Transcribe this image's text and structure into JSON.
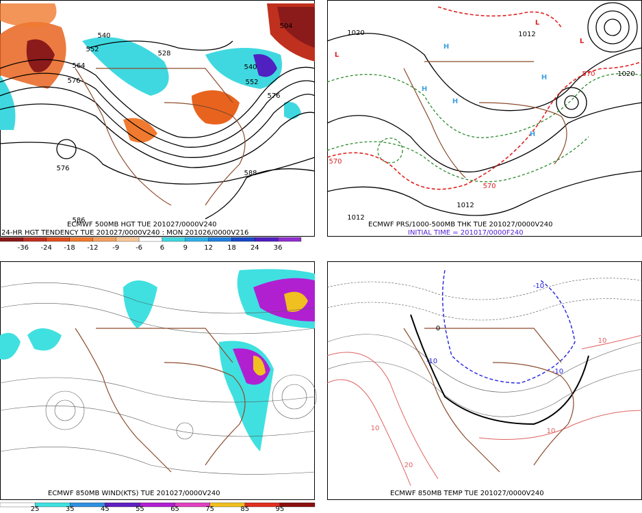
{
  "panels": [
    {
      "captions": [
        "ECMWF 500MB HGT TUE 201027/0000V240",
        "24-HR HGT TENDENCY TUE 201027/0000V240 : MON 201026/0000V216"
      ],
      "contour_labels": [
        "540",
        "552",
        "564",
        "576",
        "504",
        "576",
        "588",
        "528",
        "540",
        "552",
        "576",
        "586"
      ],
      "colorbar": {
        "labels": [
          "-36",
          "-24",
          "-18",
          "-12",
          "-9",
          "-6",
          "6",
          "9",
          "12",
          "18",
          "24",
          "36"
        ],
        "colors": [
          "#8b1a1a",
          "#c0301e",
          "#e0501e",
          "#f07a30",
          "#f4a060",
          "#f8c898",
          "#ffffff",
          "#40d8e0",
          "#30b0e8",
          "#2080e0",
          "#1848c8",
          "#5020c0",
          "#9030d0"
        ]
      }
    },
    {
      "captions": [
        "ECMWF PRS/1000-500MB THK TUE 201027/0000V240",
        "INITIAL TIME = 201017/0000F240"
      ],
      "contour_labels": [
        "1012",
        "1012",
        "1020",
        "1020",
        "1012",
        "570",
        "570",
        "570",
        "L",
        "L",
        "L",
        "H",
        "H",
        "H",
        "H",
        "H"
      ]
    },
    {
      "captions": [
        "ECMWF 850MB WIND(KTS) TUE 201027/0000V240"
      ],
      "colorbar": {
        "labels": [
          "25",
          "35",
          "45",
          "55",
          "65",
          "75",
          "85",
          "95"
        ],
        "colors": [
          "#ffffff",
          "#40e0e0",
          "#3090e0",
          "#6020c0",
          "#b020d0",
          "#e040c0",
          "#f0c020",
          "#e03020",
          "#8b1010"
        ]
      }
    },
    {
      "captions": [
        "ECMWF 850MB TEMP TUE 201027/0000V240"
      ],
      "contour_labels": [
        "-10",
        "-10",
        "-10",
        "0",
        "10",
        "10",
        "20",
        "10"
      ]
    }
  ]
}
